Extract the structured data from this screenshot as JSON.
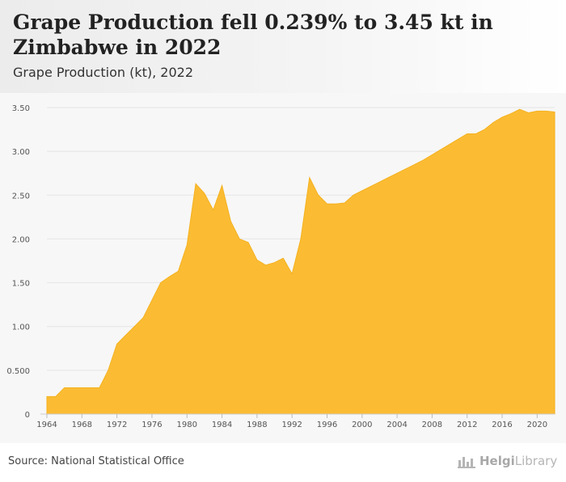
{
  "header": {
    "title": "Grape Production fell 0.239% to 3.45 kt in Zimbabwe in 2022",
    "subtitle": "Grape Production (kt), 2022"
  },
  "footer": {
    "source": "Source: National Statistical Office",
    "brand_bold": "Helgi",
    "brand_rest": "Library"
  },
  "colors": {
    "area_fill": "#fbbc33",
    "area_stroke": "#f5b11e",
    "grid": "#e6e6e6",
    "tick_label": "#555555",
    "plot_background": "#f7f7f7"
  },
  "chart_data": {
    "type": "area",
    "title": "Grape Production fell 0.239% to 3.45 kt in Zimbabwe in 2022",
    "subtitle": "Grape Production (kt), 2022",
    "xlabel": "",
    "ylabel": "",
    "ylim": [
      0,
      3.5
    ],
    "xlim": [
      1964,
      2022
    ],
    "y_ticks": [
      0,
      0.5,
      1.0,
      1.5,
      2.0,
      2.5,
      3.0,
      3.5
    ],
    "y_tick_labels": [
      "0",
      "0.500",
      "1.00",
      "1.50",
      "2.00",
      "2.50",
      "3.00",
      "3.50"
    ],
    "x_ticks": [
      1964,
      1968,
      1972,
      1976,
      1980,
      1984,
      1988,
      1992,
      1996,
      2000,
      2004,
      2008,
      2012,
      2016,
      2020
    ],
    "grid": true,
    "legend": "none",
    "series": [
      {
        "x": [
          1964,
          1965,
          1966,
          1967,
          1968,
          1969,
          1970,
          1971,
          1972,
          1973,
          1974,
          1975,
          1976,
          1977,
          1978,
          1979,
          1980,
          1981,
          1982,
          1983,
          1984,
          1985,
          1986,
          1987,
          1988,
          1989,
          1990,
          1991,
          1992,
          1993,
          1994,
          1995,
          1996,
          1997,
          1998,
          1999,
          2000,
          2001,
          2002,
          2003,
          2004,
          2005,
          2006,
          2007,
          2008,
          2009,
          2010,
          2011,
          2012,
          2013,
          2014,
          2015,
          2016,
          2017,
          2018,
          2019,
          2020,
          2021,
          2022
        ],
        "values": [
          0.2,
          0.2,
          0.3,
          0.3,
          0.3,
          0.3,
          0.3,
          0.5,
          0.8,
          0.9,
          1.0,
          1.1,
          1.3,
          1.5,
          1.57,
          1.63,
          1.93,
          2.63,
          2.52,
          2.33,
          2.61,
          2.2,
          2.0,
          1.96,
          1.76,
          1.7,
          1.73,
          1.78,
          1.6,
          2.0,
          2.7,
          2.5,
          2.4,
          2.4,
          2.41,
          2.5,
          2.55,
          2.6,
          2.65,
          2.7,
          2.75,
          2.8,
          2.85,
          2.9,
          2.96,
          3.02,
          3.08,
          3.14,
          3.2,
          3.2,
          3.25,
          3.33,
          3.39,
          3.43,
          3.48,
          3.44,
          3.46,
          3.46,
          3.45
        ]
      }
    ]
  }
}
